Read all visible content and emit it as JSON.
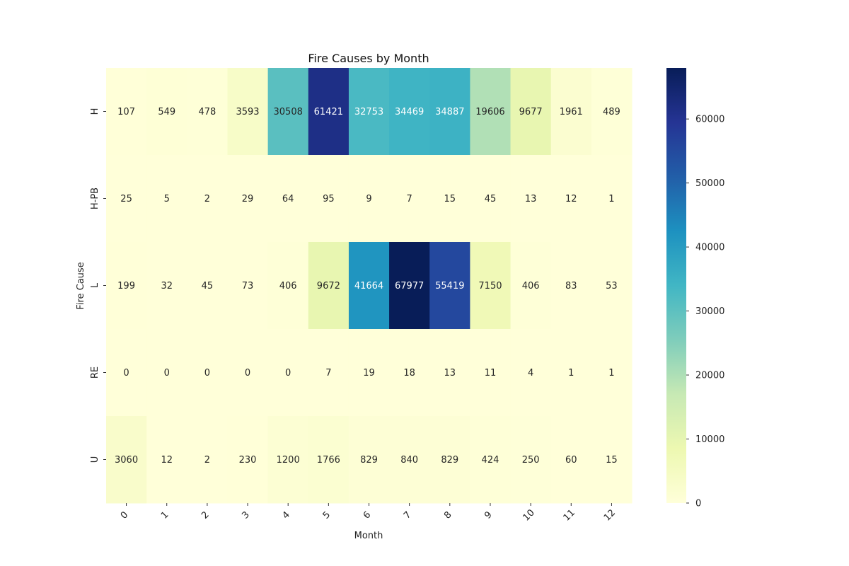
{
  "chart_data": {
    "type": "heatmap",
    "title": "Fire Causes by Month",
    "xlabel": "Month",
    "ylabel": "Fire Cause",
    "x": [
      "0",
      "1",
      "2",
      "3",
      "4",
      "5",
      "6",
      "7",
      "8",
      "9",
      "10",
      "11",
      "12"
    ],
    "y": [
      "H",
      "H-PB",
      "L",
      "RE",
      "U"
    ],
    "values": [
      [
        107,
        549,
        478,
        3593,
        30508,
        61421,
        32753,
        34469,
        34887,
        19606,
        9677,
        1961,
        489
      ],
      [
        25,
        5,
        2,
        29,
        64,
        95,
        9,
        7,
        15,
        45,
        13,
        12,
        1
      ],
      [
        199,
        32,
        45,
        73,
        406,
        9672,
        41664,
        67977,
        55419,
        7150,
        406,
        83,
        53
      ],
      [
        0,
        0,
        0,
        0,
        0,
        7,
        19,
        18,
        13,
        11,
        4,
        1,
        1
      ],
      [
        3060,
        12,
        2,
        230,
        1200,
        1766,
        829,
        840,
        829,
        424,
        250,
        60,
        15
      ]
    ],
    "colormap": "YlGnBu",
    "colorbar": {
      "min": 0,
      "max": 67977,
      "ticks": [
        0,
        10000,
        20000,
        30000,
        40000,
        50000,
        60000
      ]
    },
    "annotations": "cell values",
    "grid": false
  }
}
